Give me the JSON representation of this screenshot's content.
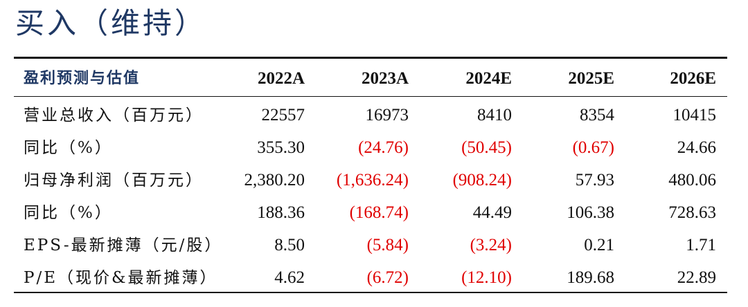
{
  "rating": "买入（维持）",
  "table": {
    "header": {
      "label": "盈利预测与估值",
      "years": [
        "2022A",
        "2023A",
        "2024E",
        "2025E",
        "2026E"
      ]
    },
    "rows": [
      {
        "label": "营业总收入（百万元）",
        "values": [
          "22557",
          "16973",
          "8410",
          "8354",
          "10415"
        ],
        "negative": [
          false,
          false,
          false,
          false,
          false
        ]
      },
      {
        "label": "同比（%）",
        "values": [
          "355.30",
          "(24.76)",
          "(50.45)",
          "(0.67)",
          "24.66"
        ],
        "negative": [
          false,
          true,
          true,
          true,
          false
        ]
      },
      {
        "label": "归母净利润（百万元）",
        "values": [
          "2,380.20",
          "(1,636.24)",
          "(908.24)",
          "57.93",
          "480.06"
        ],
        "negative": [
          false,
          true,
          true,
          false,
          false
        ]
      },
      {
        "label": "同比（%）",
        "values": [
          "188.36",
          "(168.74)",
          "44.49",
          "106.38",
          "728.63"
        ],
        "negative": [
          false,
          true,
          false,
          false,
          false
        ]
      },
      {
        "label": "EPS-最新摊薄（元/股）",
        "values": [
          "8.50",
          "(5.84)",
          "(3.24)",
          "0.21",
          "1.71"
        ],
        "negative": [
          false,
          true,
          true,
          false,
          false
        ]
      },
      {
        "label": "P/E（现价&最新摊薄）",
        "values": [
          "4.62",
          "(6.72)",
          "(12.10)",
          "189.68",
          "22.89"
        ],
        "negative": [
          false,
          true,
          true,
          false,
          false
        ]
      }
    ]
  },
  "colors": {
    "heading": "#1f3864",
    "negative": "#e00000",
    "text": "#111111"
  }
}
